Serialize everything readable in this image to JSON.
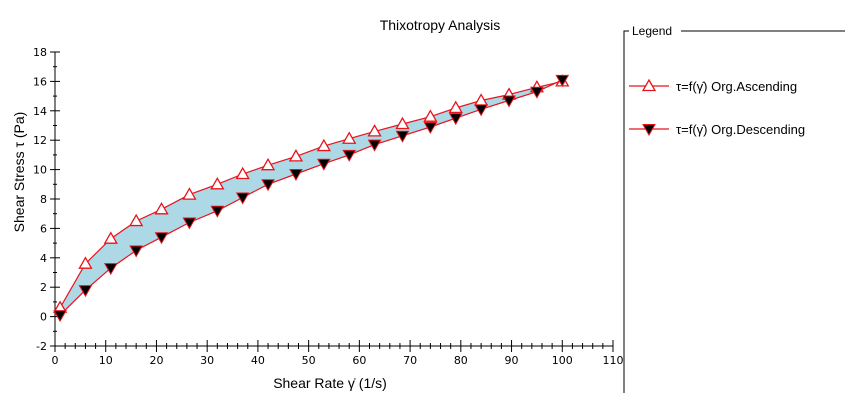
{
  "chart_data": {
    "type": "line",
    "title": "Thixotropy Analysis",
    "xlabel": "Shear Rate γ̇ (1/s)",
    "ylabel": "Shear Stress τ (Pa)",
    "xlim": [
      0,
      110
    ],
    "ylim": [
      -2,
      18
    ],
    "xticks": [
      0,
      10,
      20,
      30,
      40,
      50,
      60,
      70,
      80,
      90,
      100,
      110
    ],
    "yticks": [
      -2,
      0,
      2,
      4,
      6,
      8,
      10,
      12,
      14,
      16,
      18
    ],
    "grid": false,
    "fill_between_series": true,
    "legend": {
      "title": "Legend",
      "placement": "right"
    },
    "series": [
      {
        "name": "τ=f(γ̇)  Org.Ascending",
        "marker": "triangle-up-open",
        "color": "#e8141c",
        "x": [
          1,
          6,
          11,
          16,
          21,
          26.5,
          32,
          37,
          42,
          47.5,
          53,
          58,
          63,
          68.5,
          74,
          79,
          84,
          89.5,
          95,
          100
        ],
        "y": [
          0.6,
          3.6,
          5.3,
          6.5,
          7.3,
          8.3,
          9.0,
          9.7,
          10.3,
          10.9,
          11.6,
          12.1,
          12.6,
          13.1,
          13.6,
          14.2,
          14.7,
          15.1,
          15.6,
          16.0
        ]
      },
      {
        "name": "τ=f(γ̇)  Org.Descending",
        "marker": "triangle-down-filled",
        "color": "#e8141c",
        "x": [
          1,
          6,
          11,
          16,
          21,
          26.5,
          32,
          37,
          42,
          47.5,
          53,
          58,
          63,
          68.5,
          74,
          79,
          84,
          89.5,
          95,
          100
        ],
        "y": [
          0.1,
          1.8,
          3.3,
          4.5,
          5.4,
          6.4,
          7.2,
          8.1,
          9.0,
          9.7,
          10.4,
          11.0,
          11.7,
          12.3,
          12.9,
          13.5,
          14.1,
          14.7,
          15.3,
          16.1
        ]
      }
    ],
    "colors": {
      "fill": "#add8e6",
      "axis": "#000000",
      "marker_fill_descending": "#000000"
    }
  }
}
